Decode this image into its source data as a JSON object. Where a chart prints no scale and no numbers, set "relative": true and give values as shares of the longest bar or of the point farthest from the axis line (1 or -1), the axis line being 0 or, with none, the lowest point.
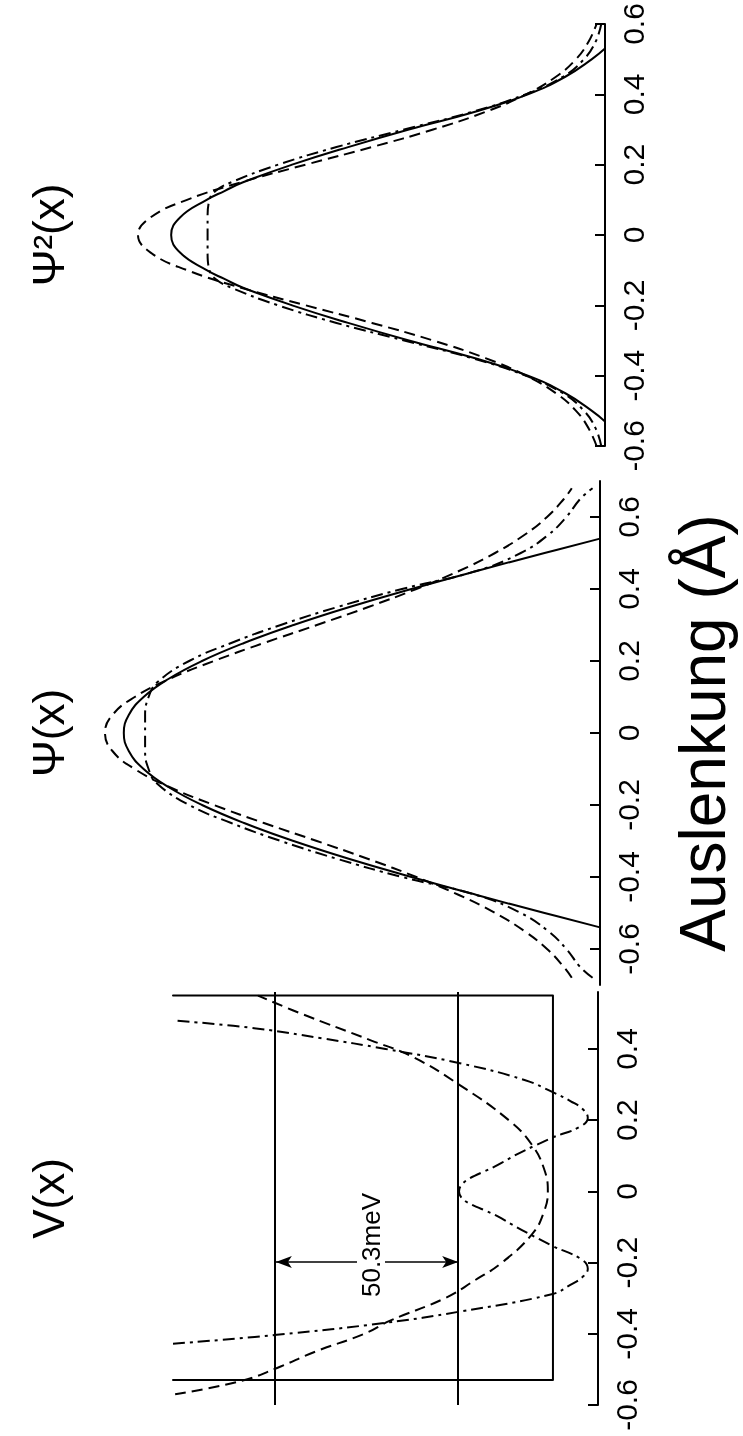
{
  "chart_data": [
    {
      "type": "line",
      "orientation": "horizontal",
      "title": "V(x)",
      "relative": true,
      "ylim": [
        -0.6,
        0.56
      ],
      "yticks": [
        -0.6,
        -0.4,
        -0.2,
        0,
        0.2,
        0.4
      ],
      "series": [
        {
          "color": "#000000",
          "line_style": "solid",
          "x": [
            -0.53,
            -0.53,
            -0.3,
            0,
            0.3,
            0.55,
            0.55
          ],
          "values": [
            -1,
            -0.106,
            -0.106,
            -0.106,
            -0.106,
            -0.106,
            -1
          ]
        },
        {
          "color": "#000000",
          "line_style": "dashed",
          "x": [
            -0.57,
            -0.532,
            -0.496,
            -0.45,
            -0.4,
            -0.363,
            -0.3,
            -0.25,
            -0.2,
            -0.12,
            -0.06,
            0,
            0.06,
            0.13,
            0.2,
            0.3,
            0.377,
            0.425,
            0.5,
            0.55
          ],
          "values": [
            -0.995,
            -0.838,
            -0.755,
            -0.665,
            -0.55,
            -0.489,
            -0.36,
            -0.29,
            -0.226,
            -0.155,
            -0.128,
            -0.118,
            -0.126,
            -0.155,
            -0.21,
            -0.327,
            -0.435,
            -0.536,
            -0.7,
            -0.8
          ]
        },
        {
          "color": "#000000",
          "line_style": "dashdot",
          "x": [
            -0.428,
            -0.403,
            -0.369,
            -0.338,
            -0.289,
            -0.262,
            -0.24,
            -0.217,
            -0.19,
            -0.152,
            -0.076,
            0,
            0.08,
            0.15,
            0.18,
            0.206,
            0.23,
            0.253,
            0.28,
            0.313,
            0.36,
            0.4,
            0.43,
            0.46,
            0.48
          ],
          "values": [
            -1,
            -0.756,
            -0.499,
            -0.327,
            -0.109,
            -0.064,
            -0.036,
            -0.024,
            -0.04,
            -0.109,
            -0.227,
            -0.327,
            -0.227,
            -0.109,
            -0.045,
            -0.024,
            -0.035,
            -0.064,
            -0.109,
            -0.173,
            -0.325,
            -0.5,
            -0.65,
            -0.82,
            -1
          ]
        }
      ],
      "ref_lines": [
        {
          "axis": "x",
          "value": -0.329,
          "color": "#000000"
        },
        {
          "axis": "x",
          "value": -0.758,
          "color": "#000000"
        }
      ],
      "annotations": [
        "50.3meV"
      ]
    },
    {
      "type": "line",
      "orientation": "horizontal",
      "title": "Ψ(x)",
      "ylabel": "Auslenkung (Å)",
      "relative": true,
      "ylim": [
        -0.7,
        0.7
      ],
      "yticks": [
        -0.6,
        -0.4,
        -0.2,
        0,
        0.2,
        0.4,
        0.6
      ],
      "series": [
        {
          "color": "#000000",
          "line_style": "solid",
          "x": [
            -0.54,
            -0.5,
            -0.45,
            -0.4,
            -0.35,
            -0.3,
            -0.25,
            -0.2,
            -0.15,
            -0.1,
            -0.05,
            0,
            0.05,
            0.1,
            0.15,
            0.2,
            0.25,
            0.3,
            0.35,
            0.4,
            0.45,
            0.5,
            0.54
          ],
          "values": [
            0,
            -0.112,
            -0.249,
            -0.381,
            -0.506,
            -0.619,
            -0.719,
            -0.804,
            -0.872,
            -0.922,
            -0.952,
            -0.962,
            -0.952,
            -0.922,
            -0.872,
            -0.804,
            -0.719,
            -0.619,
            -0.506,
            -0.381,
            -0.249,
            -0.112,
            0
          ]
        },
        {
          "color": "#000000",
          "line_style": "dashed",
          "x": [
            -0.68,
            -0.65,
            -0.6,
            -0.55,
            -0.5,
            -0.45,
            -0.4,
            -0.35,
            -0.3,
            -0.25,
            -0.2,
            -0.15,
            -0.1,
            -0.05,
            0,
            0.05,
            0.1,
            0.15,
            0.2,
            0.25,
            0.3,
            0.35,
            0.4,
            0.45,
            0.5,
            0.55,
            0.6,
            0.65,
            0.68
          ],
          "values": [
            -0.057,
            -0.073,
            -0.107,
            -0.153,
            -0.212,
            -0.285,
            -0.371,
            -0.468,
            -0.572,
            -0.679,
            -0.78,
            -0.87,
            -0.94,
            -0.985,
            -1,
            -0.985,
            -0.94,
            -0.87,
            -0.78,
            -0.679,
            -0.572,
            -0.468,
            -0.371,
            -0.285,
            -0.212,
            -0.153,
            -0.107,
            -0.073,
            -0.057
          ]
        },
        {
          "color": "#000000",
          "line_style": "dashdot",
          "x": [
            -0.68,
            -0.65,
            -0.6,
            -0.55,
            -0.5,
            -0.45,
            -0.4,
            -0.35,
            -0.3,
            -0.25,
            -0.2,
            -0.14,
            -0.1,
            -0.05,
            0,
            0.05,
            0.1,
            0.14,
            0.2,
            0.25,
            0.3,
            0.35,
            0.4,
            0.45,
            0.5,
            0.55,
            0.6,
            0.65,
            0.68
          ],
          "values": [
            -0.015,
            -0.04,
            -0.068,
            -0.105,
            -0.16,
            -0.25,
            -0.4,
            -0.53,
            -0.645,
            -0.745,
            -0.83,
            -0.895,
            -0.912,
            -0.919,
            -0.919,
            -0.919,
            -0.912,
            -0.895,
            -0.83,
            -0.745,
            -0.645,
            -0.53,
            -0.4,
            -0.25,
            -0.16,
            -0.105,
            -0.068,
            -0.04,
            -0.015
          ]
        }
      ]
    },
    {
      "type": "line",
      "orientation": "horizontal",
      "title": "Ψ²(x)",
      "relative": true,
      "ylim": [
        -0.6,
        0.6
      ],
      "yticks": [
        -0.6,
        -0.4,
        -0.2,
        0,
        0.2,
        0.4,
        0.6
      ],
      "series": [
        {
          "color": "#000000",
          "line_style": "solid",
          "x": [
            -0.53,
            -0.5,
            -0.45,
            -0.4,
            -0.35,
            -0.3,
            -0.25,
            -0.2,
            -0.15,
            -0.125,
            -0.1,
            -0.05,
            0,
            0.05,
            0.1,
            0.125,
            0.15,
            0.2,
            0.25,
            0.3,
            0.35,
            0.4,
            0.45,
            0.5,
            0.53
          ],
          "values": [
            0,
            -0.028,
            -0.085,
            -0.165,
            -0.28,
            -0.42,
            -0.55,
            -0.67,
            -0.775,
            -0.815,
            -0.853,
            -0.91,
            -0.929,
            -0.91,
            -0.853,
            -0.815,
            -0.775,
            -0.67,
            -0.55,
            -0.42,
            -0.28,
            -0.165,
            -0.085,
            -0.028,
            0
          ]
        },
        {
          "color": "#000000",
          "line_style": "dashed",
          "x": [
            -0.6,
            -0.55,
            -0.5,
            -0.45,
            -0.4,
            -0.35,
            -0.3,
            -0.25,
            -0.2,
            -0.15,
            -0.1,
            -0.05,
            0,
            0.05,
            0.1,
            0.15,
            0.2,
            0.25,
            0.3,
            0.35,
            0.4,
            0.45,
            0.5,
            0.55,
            0.6
          ],
          "values": [
            -0.018,
            -0.035,
            -0.062,
            -0.105,
            -0.169,
            -0.256,
            -0.368,
            -0.499,
            -0.641,
            -0.779,
            -0.895,
            -0.973,
            -1,
            -0.973,
            -0.895,
            -0.779,
            -0.641,
            -0.499,
            -0.368,
            -0.256,
            -0.169,
            -0.105,
            -0.062,
            -0.035,
            -0.018
          ]
        },
        {
          "color": "#000000",
          "line_style": "dashdot",
          "x": [
            -0.6,
            -0.55,
            -0.5,
            -0.45,
            -0.4,
            -0.35,
            -0.3,
            -0.25,
            -0.2,
            -0.15,
            -0.125,
            -0.1,
            -0.05,
            0,
            0.05,
            0.1,
            0.125,
            0.15,
            0.2,
            0.25,
            0.3,
            0.35,
            0.4,
            0.45,
            0.5,
            0.55,
            0.6
          ],
          "values": [
            -0.008,
            -0.02,
            -0.045,
            -0.09,
            -0.17,
            -0.285,
            -0.43,
            -0.575,
            -0.7,
            -0.8,
            -0.834,
            -0.847,
            -0.851,
            -0.851,
            -0.851,
            -0.847,
            -0.834,
            -0.8,
            -0.7,
            -0.575,
            -0.43,
            -0.285,
            -0.17,
            -0.09,
            -0.045,
            -0.02,
            -0.008
          ]
        }
      ]
    }
  ]
}
